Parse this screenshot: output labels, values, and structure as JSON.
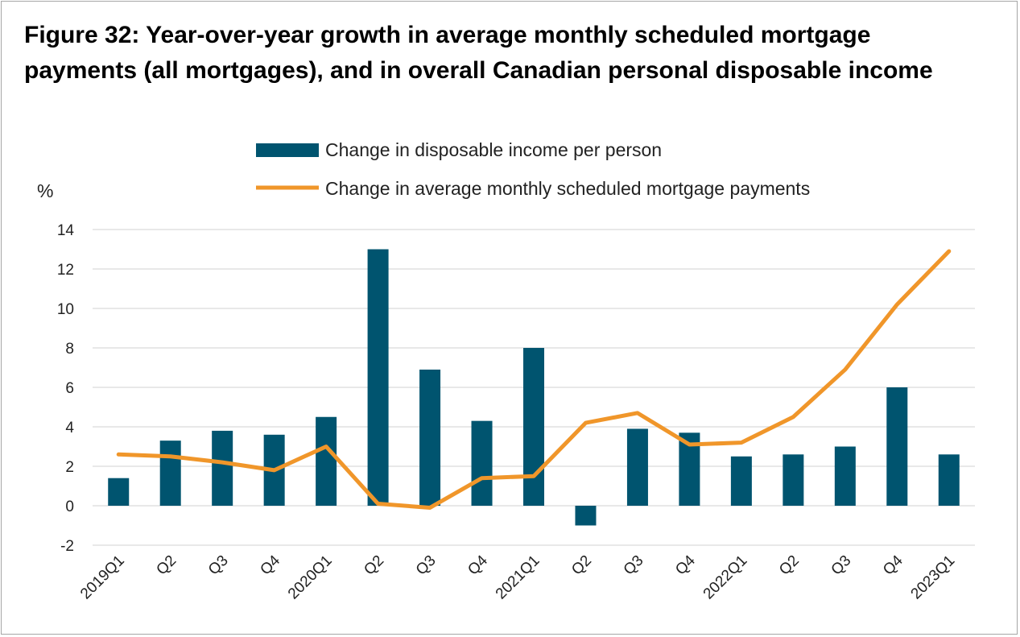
{
  "title_line1": "Figure 32: Year-over-year growth in average monthly scheduled mortgage",
  "title_line2": "payments (all mortgages), and in overall Canadian personal disposable income",
  "chart_data": {
    "type": "bar+line",
    "ylabel": "%",
    "ylim": [
      -2,
      14
    ],
    "yticks": [
      -2,
      0,
      2,
      4,
      6,
      8,
      10,
      12,
      14
    ],
    "grid": true,
    "legend_position": "top",
    "categories": [
      "2019Q1",
      "Q2",
      "Q3",
      "Q4",
      "2020Q1",
      "Q2",
      "Q3",
      "Q4",
      "2021Q1",
      "Q2",
      "Q3",
      "Q4",
      "2022Q1",
      "Q2",
      "Q3",
      "Q4",
      "2023Q1"
    ],
    "series": [
      {
        "name": "Change in disposable income per person",
        "type": "bar",
        "color": "#00546f",
        "values": [
          1.4,
          3.3,
          3.8,
          3.6,
          4.5,
          13.0,
          6.9,
          4.3,
          8.0,
          -1.0,
          3.9,
          3.7,
          2.5,
          2.6,
          3.0,
          6.0,
          2.6
        ]
      },
      {
        "name": "Change in average monthly scheduled mortgage payments",
        "type": "line",
        "color": "#f0962a",
        "values": [
          2.6,
          2.5,
          2.2,
          1.8,
          3.0,
          0.1,
          -0.1,
          1.4,
          1.5,
          4.2,
          4.7,
          3.1,
          3.2,
          4.5,
          6.9,
          10.2,
          12.9
        ]
      }
    ]
  }
}
